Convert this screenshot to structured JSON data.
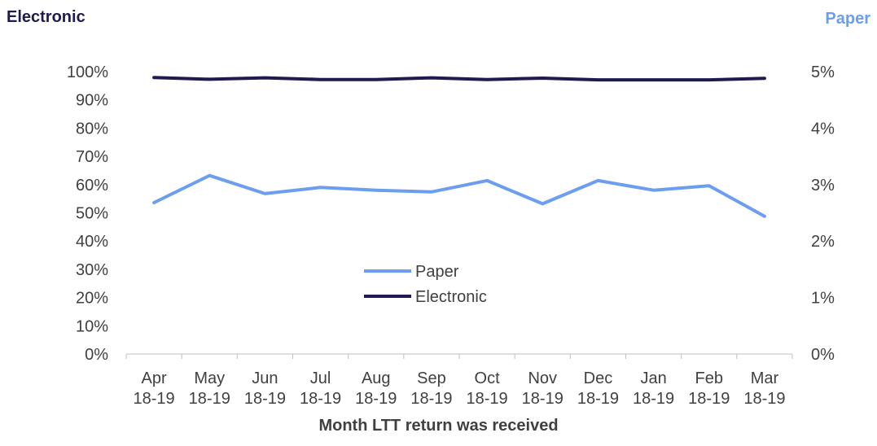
{
  "chart_data": {
    "type": "line",
    "title": "",
    "ylabel_left": "Electronic",
    "ylabel_right": "Paper",
    "xlabel": "Month LTT return was received",
    "categories": [
      [
        "Apr",
        "18-19"
      ],
      [
        "May",
        "18-19"
      ],
      [
        "Jun",
        "18-19"
      ],
      [
        "Jul",
        "18-19"
      ],
      [
        "Aug",
        "18-19"
      ],
      [
        "Sep",
        "18-19"
      ],
      [
        "Oct",
        "18-19"
      ],
      [
        "Nov",
        "18-19"
      ],
      [
        "Dec",
        "18-19"
      ],
      [
        "Jan",
        "18-19"
      ],
      [
        "Feb",
        "18-19"
      ],
      [
        "Mar",
        "18-19"
      ]
    ],
    "y_left": {
      "min": 0,
      "max": 100,
      "step": 10,
      "ticks": [
        "0%",
        "10%",
        "20%",
        "30%",
        "40%",
        "50%",
        "60%",
        "70%",
        "80%",
        "90%",
        "100%"
      ]
    },
    "y_right": {
      "min": 0,
      "max": 5,
      "step": 1,
      "ticks": [
        "0%",
        "1%",
        "2%",
        "3%",
        "4%",
        "5%"
      ]
    },
    "series": [
      {
        "name": "Paper",
        "axis": "right",
        "color": "#6c9ef0",
        "values": [
          2.68,
          3.16,
          2.84,
          2.95,
          2.9,
          2.87,
          3.07,
          2.66,
          3.07,
          2.9,
          2.98,
          2.44
        ]
      },
      {
        "name": "Electronic",
        "axis": "left",
        "color": "#1f1a4f",
        "values": [
          97.9,
          97.3,
          97.8,
          97.2,
          97.2,
          97.8,
          97.2,
          97.7,
          97.1,
          97.1,
          97.1,
          97.6
        ]
      }
    ],
    "legend": {
      "position": "center",
      "order": [
        "Paper",
        "Electronic"
      ]
    },
    "grid": false
  }
}
